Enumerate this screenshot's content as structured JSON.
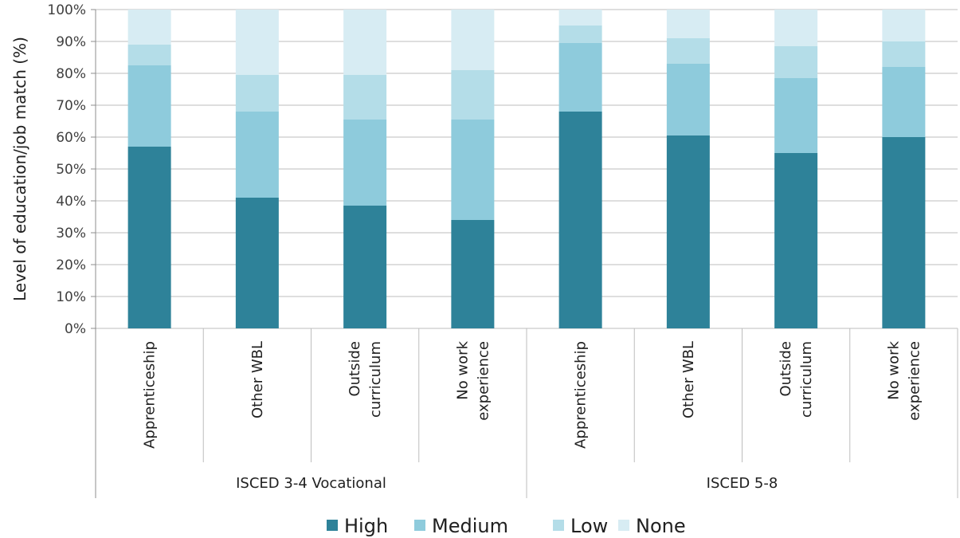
{
  "chart_data": {
    "type": "bar",
    "stacked": true,
    "ylabel": "Level of education/job match (%)",
    "ylim": [
      0,
      100
    ],
    "yticks": [
      "0%",
      "10%",
      "20%",
      "30%",
      "40%",
      "50%",
      "60%",
      "70%",
      "80%",
      "90%",
      "100%"
    ],
    "grid": true,
    "legend_position": "bottom",
    "groups": [
      {
        "label": "ISCED 3-4 Vocational",
        "categories": [
          "Apprenticeship",
          "Other WBL",
          "Outside curriculum",
          "No work experience"
        ]
      },
      {
        "label": "ISCED 5-8",
        "categories": [
          "Apprenticeship",
          "Other WBL",
          "Outside curriculum",
          "No work experience"
        ]
      }
    ],
    "categories": [
      "Apprenticeship",
      "Other WBL",
      "Outside curriculum",
      "No work experience",
      "Apprenticeship",
      "Other WBL",
      "Outside curriculum",
      "No work experience"
    ],
    "category_lines": [
      [
        "Apprenticeship"
      ],
      [
        "Other WBL"
      ],
      [
        "Outside",
        "curriculum"
      ],
      [
        "No work",
        "experience"
      ],
      [
        "Apprenticeship"
      ],
      [
        "Other WBL"
      ],
      [
        "Outside",
        "curriculum"
      ],
      [
        "No work",
        "experience"
      ]
    ],
    "series": [
      {
        "name": "High",
        "color": "#2e8299",
        "values": [
          57,
          41,
          38.5,
          34,
          68,
          60.5,
          55,
          60
        ]
      },
      {
        "name": "Medium",
        "color": "#8ecbdc",
        "values": [
          25.5,
          27,
          27,
          31.5,
          21.5,
          22.5,
          23.5,
          22
        ]
      },
      {
        "name": "Low",
        "color": "#b4dde8",
        "values": [
          6.5,
          11.5,
          14,
          15.5,
          5.5,
          8,
          10,
          8
        ]
      },
      {
        "name": "None",
        "color": "#d7ecf3",
        "values": [
          11,
          20.5,
          20.5,
          19,
          5,
          9,
          11.5,
          10
        ]
      }
    ]
  }
}
